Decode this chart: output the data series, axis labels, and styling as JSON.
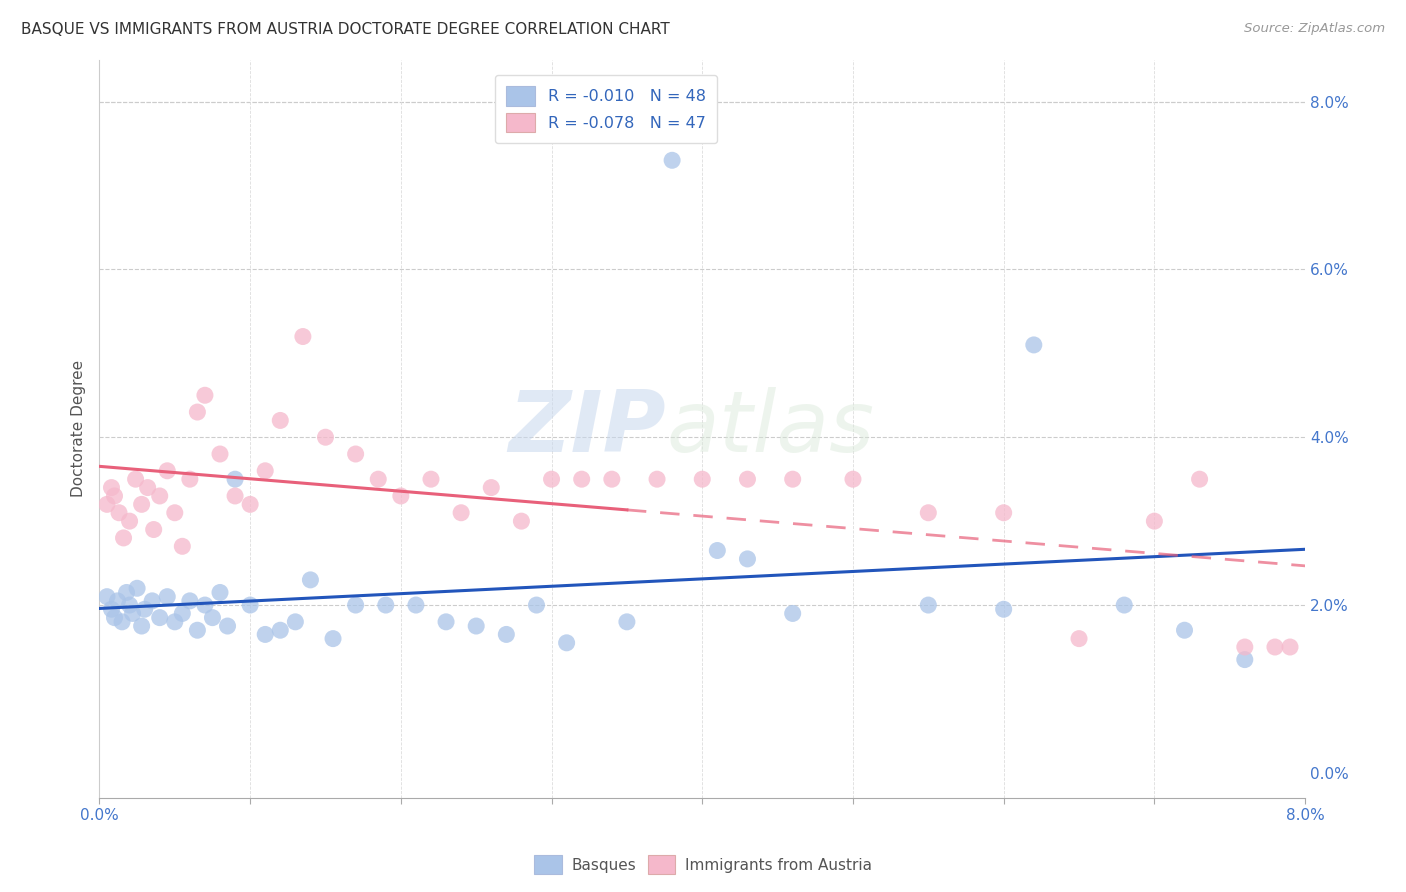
{
  "title": "BASQUE VS IMMIGRANTS FROM AUSTRIA DOCTORATE DEGREE CORRELATION CHART",
  "source": "Source: ZipAtlas.com",
  "ylabel": "Doctorate Degree",
  "legend_label1": "Basques",
  "legend_label2": "Immigrants from Austria",
  "color_blue": "#aac4e8",
  "color_pink": "#f5b8cb",
  "color_blue_line": "#2255bb",
  "color_pink_line": "#e8607a",
  "watermark_zip": "ZIP",
  "watermark_atlas": "atlas",
  "xlim": [
    0.0,
    8.0
  ],
  "ylim": [
    -0.3,
    8.5
  ],
  "basque_x": [
    0.05,
    0.08,
    0.1,
    0.12,
    0.15,
    0.18,
    0.2,
    0.22,
    0.25,
    0.28,
    0.3,
    0.35,
    0.4,
    0.45,
    0.5,
    0.55,
    0.6,
    0.65,
    0.7,
    0.75,
    0.8,
    0.85,
    0.9,
    1.0,
    1.1,
    1.2,
    1.3,
    1.4,
    1.55,
    1.7,
    1.9,
    2.1,
    2.3,
    2.5,
    2.7,
    2.9,
    3.1,
    3.5,
    3.8,
    4.1,
    4.3,
    4.6,
    5.5,
    6.0,
    6.2,
    6.8,
    7.2,
    7.6
  ],
  "basque_y": [
    2.1,
    1.95,
    1.85,
    2.05,
    1.8,
    2.15,
    2.0,
    1.9,
    2.2,
    1.75,
    1.95,
    2.05,
    1.85,
    2.1,
    1.8,
    1.9,
    2.05,
    1.7,
    2.0,
    1.85,
    2.15,
    1.75,
    3.5,
    2.0,
    1.65,
    1.7,
    1.8,
    2.3,
    1.6,
    2.0,
    2.0,
    2.0,
    1.8,
    1.75,
    1.65,
    2.0,
    1.55,
    1.8,
    7.3,
    2.65,
    2.55,
    1.9,
    2.0,
    1.95,
    5.1,
    2.0,
    1.7,
    1.35
  ],
  "austria_x": [
    0.05,
    0.08,
    0.1,
    0.13,
    0.16,
    0.2,
    0.24,
    0.28,
    0.32,
    0.36,
    0.4,
    0.45,
    0.5,
    0.55,
    0.6,
    0.65,
    0.7,
    0.8,
    0.9,
    1.0,
    1.1,
    1.2,
    1.35,
    1.5,
    1.7,
    1.85,
    2.0,
    2.2,
    2.4,
    2.6,
    2.8,
    3.0,
    3.2,
    3.4,
    3.7,
    4.0,
    4.3,
    4.6,
    5.0,
    5.5,
    6.0,
    6.5,
    7.0,
    7.3,
    7.6,
    7.8,
    7.9
  ],
  "austria_y": [
    3.2,
    3.4,
    3.3,
    3.1,
    2.8,
    3.0,
    3.5,
    3.2,
    3.4,
    2.9,
    3.3,
    3.6,
    3.1,
    2.7,
    3.5,
    4.3,
    4.5,
    3.8,
    3.3,
    3.2,
    3.6,
    4.2,
    5.2,
    4.0,
    3.8,
    3.5,
    3.3,
    3.5,
    3.1,
    3.4,
    3.0,
    3.5,
    3.5,
    3.5,
    3.5,
    3.5,
    3.5,
    3.5,
    3.5,
    3.1,
    3.1,
    1.6,
    3.0,
    3.5,
    1.5,
    1.5,
    1.5
  ]
}
